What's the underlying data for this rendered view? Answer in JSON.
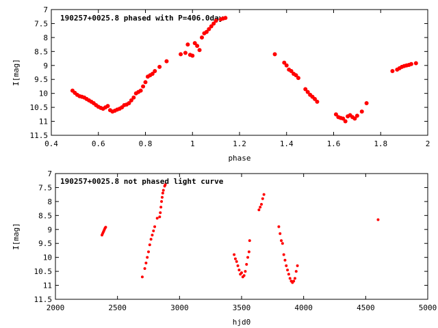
{
  "chart_data": [
    {
      "type": "scatter",
      "title": "190257+0025.8 phased with P=406.0day",
      "xlabel": "phase",
      "ylabel": "I[mag]",
      "xlim": [
        0.4,
        2.0
      ],
      "ylim": [
        11.5,
        7.0
      ],
      "y_inverted": true,
      "xticks": [
        "0.4",
        "0.6",
        "0.8",
        "1",
        "1.2",
        "1.4",
        "1.6",
        "1.8",
        "2"
      ],
      "yticks": [
        "7",
        "7.5",
        "8",
        "8.5",
        "9",
        "9.5",
        "10",
        "10.5",
        "11",
        "11.5"
      ],
      "grid": false,
      "marker": "filled-circle",
      "color": "#ff0000",
      "points": [
        [
          0.49,
          9.9
        ],
        [
          0.5,
          9.98
        ],
        [
          0.51,
          10.05
        ],
        [
          0.52,
          10.1
        ],
        [
          0.53,
          10.12
        ],
        [
          0.54,
          10.15
        ],
        [
          0.55,
          10.2
        ],
        [
          0.56,
          10.25
        ],
        [
          0.57,
          10.3
        ],
        [
          0.58,
          10.35
        ],
        [
          0.59,
          10.42
        ],
        [
          0.6,
          10.48
        ],
        [
          0.61,
          10.52
        ],
        [
          0.62,
          10.55
        ],
        [
          0.63,
          10.5
        ],
        [
          0.64,
          10.45
        ],
        [
          0.65,
          10.6
        ],
        [
          0.66,
          10.65
        ],
        [
          0.67,
          10.62
        ],
        [
          0.68,
          10.58
        ],
        [
          0.69,
          10.55
        ],
        [
          0.7,
          10.5
        ],
        [
          0.71,
          10.42
        ],
        [
          0.72,
          10.4
        ],
        [
          0.73,
          10.35
        ],
        [
          0.74,
          10.25
        ],
        [
          0.75,
          10.15
        ],
        [
          0.76,
          10.0
        ],
        [
          0.77,
          9.95
        ],
        [
          0.78,
          9.9
        ],
        [
          0.79,
          9.75
        ],
        [
          0.8,
          9.6
        ],
        [
          0.81,
          9.4
        ],
        [
          0.82,
          9.35
        ],
        [
          0.83,
          9.3
        ],
        [
          0.84,
          9.2
        ],
        [
          0.86,
          9.05
        ],
        [
          0.89,
          8.85
        ],
        [
          0.95,
          8.6
        ],
        [
          0.97,
          8.55
        ],
        [
          0.98,
          8.25
        ],
        [
          0.99,
          8.62
        ],
        [
          1.0,
          8.65
        ],
        [
          1.01,
          8.2
        ],
        [
          1.02,
          8.3
        ],
        [
          1.03,
          8.45
        ],
        [
          1.04,
          8.0
        ],
        [
          1.05,
          7.85
        ],
        [
          1.06,
          7.8
        ],
        [
          1.07,
          7.7
        ],
        [
          1.08,
          7.6
        ],
        [
          1.09,
          7.5
        ],
        [
          1.1,
          7.4
        ],
        [
          1.12,
          7.35
        ],
        [
          1.13,
          7.32
        ],
        [
          1.14,
          7.3
        ],
        [
          1.35,
          8.6
        ],
        [
          1.39,
          8.9
        ],
        [
          1.4,
          9.0
        ],
        [
          1.41,
          9.15
        ],
        [
          1.42,
          9.2
        ],
        [
          1.43,
          9.3
        ],
        [
          1.44,
          9.35
        ],
        [
          1.45,
          9.45
        ],
        [
          1.48,
          9.85
        ],
        [
          1.49,
          9.95
        ],
        [
          1.5,
          10.05
        ],
        [
          1.51,
          10.12
        ],
        [
          1.52,
          10.2
        ],
        [
          1.53,
          10.3
        ],
        [
          1.61,
          10.75
        ],
        [
          1.62,
          10.85
        ],
        [
          1.63,
          10.88
        ],
        [
          1.64,
          10.9
        ],
        [
          1.65,
          11.0
        ],
        [
          1.66,
          10.82
        ],
        [
          1.67,
          10.78
        ],
        [
          1.68,
          10.85
        ],
        [
          1.69,
          10.9
        ],
        [
          1.7,
          10.8
        ],
        [
          1.72,
          10.65
        ],
        [
          1.74,
          10.35
        ],
        [
          1.85,
          9.2
        ],
        [
          1.87,
          9.15
        ],
        [
          1.88,
          9.1
        ],
        [
          1.89,
          9.05
        ],
        [
          1.9,
          9.02
        ],
        [
          1.91,
          9.0
        ],
        [
          1.92,
          8.98
        ],
        [
          1.93,
          8.95
        ],
        [
          1.95,
          8.92
        ]
      ]
    },
    {
      "type": "scatter",
      "title": "190257+0025.8 not phased light curve",
      "xlabel": "hjd0",
      "ylabel": "I[mag]",
      "xlim": [
        2000,
        5000
      ],
      "ylim": [
        11.5,
        7.0
      ],
      "y_inverted": true,
      "xticks": [
        "2000",
        "2500",
        "3000",
        "3500",
        "4000",
        "4500",
        "5000"
      ],
      "yticks": [
        "7",
        "7.5",
        "8",
        "8.5",
        "9",
        "9.5",
        "10",
        "10.5",
        "11",
        "11.5"
      ],
      "grid": false,
      "marker": "filled-circle",
      "color": "#ff0000",
      "points": [
        [
          2375,
          9.2
        ],
        [
          2380,
          9.15
        ],
        [
          2385,
          9.1
        ],
        [
          2390,
          9.05
        ],
        [
          2395,
          9.0
        ],
        [
          2400,
          8.95
        ],
        [
          2405,
          8.92
        ],
        [
          2700,
          10.7
        ],
        [
          2720,
          10.4
        ],
        [
          2730,
          10.2
        ],
        [
          2740,
          10.0
        ],
        [
          2750,
          9.8
        ],
        [
          2760,
          9.55
        ],
        [
          2770,
          9.35
        ],
        [
          2780,
          9.2
        ],
        [
          2790,
          9.05
        ],
        [
          2800,
          8.9
        ],
        [
          2820,
          8.6
        ],
        [
          2840,
          8.55
        ],
        [
          2845,
          8.4
        ],
        [
          2850,
          8.2
        ],
        [
          2855,
          8.0
        ],
        [
          2860,
          7.85
        ],
        [
          2865,
          7.7
        ],
        [
          2870,
          7.6
        ],
        [
          2880,
          7.45
        ],
        [
          2885,
          7.4
        ],
        [
          3440,
          9.9
        ],
        [
          3450,
          10.05
        ],
        [
          3460,
          10.15
        ],
        [
          3470,
          10.3
        ],
        [
          3480,
          10.45
        ],
        [
          3490,
          10.6
        ],
        [
          3500,
          10.55
        ],
        [
          3510,
          10.7
        ],
        [
          3520,
          10.65
        ],
        [
          3530,
          10.5
        ],
        [
          3540,
          10.25
        ],
        [
          3550,
          10.0
        ],
        [
          3560,
          9.8
        ],
        [
          3565,
          9.4
        ],
        [
          3640,
          8.3
        ],
        [
          3650,
          8.2
        ],
        [
          3660,
          8.1
        ],
        [
          3670,
          7.9
        ],
        [
          3680,
          7.75
        ],
        [
          3800,
          8.9
        ],
        [
          3810,
          9.15
        ],
        [
          3820,
          9.4
        ],
        [
          3830,
          9.5
        ],
        [
          3840,
          9.9
        ],
        [
          3850,
          10.1
        ],
        [
          3860,
          10.3
        ],
        [
          3870,
          10.45
        ],
        [
          3880,
          10.6
        ],
        [
          3890,
          10.75
        ],
        [
          3900,
          10.85
        ],
        [
          3910,
          10.9
        ],
        [
          3920,
          10.85
        ],
        [
          3930,
          10.75
        ],
        [
          3940,
          10.5
        ],
        [
          3950,
          10.3
        ],
        [
          4600,
          8.65
        ]
      ]
    }
  ]
}
